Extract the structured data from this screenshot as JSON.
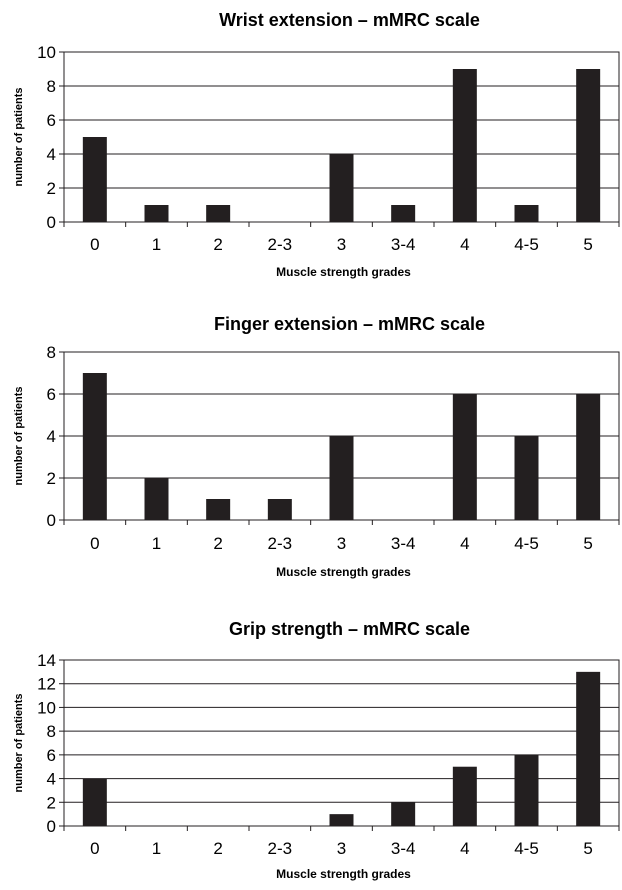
{
  "chart_data": [
    {
      "type": "bar",
      "title": "Wrist extension – mMRC scale",
      "xlabel": "Muscle strength grades",
      "ylabel": "number of patients",
      "categories": [
        "0",
        "1",
        "2",
        "2-3",
        "3",
        "3-4",
        "4",
        "4-5",
        "5"
      ],
      "values": [
        5,
        1,
        1,
        0,
        4,
        1,
        9,
        1,
        9
      ],
      "ylim": [
        0,
        10
      ],
      "yticks": [
        "0",
        "2",
        "4",
        "6",
        "8",
        "10"
      ],
      "grid": true,
      "bar_color": "#231f20"
    },
    {
      "type": "bar",
      "title": "Finger extension – mMRC scale",
      "xlabel": "Muscle strength grades",
      "ylabel": "number of patients",
      "categories": [
        "0",
        "1",
        "2",
        "2-3",
        "3",
        "3-4",
        "4",
        "4-5",
        "5"
      ],
      "values": [
        7,
        2,
        1,
        1,
        4,
        0,
        6,
        4,
        6
      ],
      "ylim": [
        0,
        8
      ],
      "yticks": [
        "0",
        "2",
        "4",
        "6",
        "8"
      ],
      "grid": true,
      "bar_color": "#231f20"
    },
    {
      "type": "bar",
      "title": "Grip strength – mMRC scale",
      "xlabel": "Muscle strength grades",
      "ylabel": "number of patients",
      "categories": [
        "0",
        "1",
        "2",
        "2-3",
        "3",
        "3-4",
        "4",
        "4-5",
        "5"
      ],
      "values": [
        4,
        0,
        0,
        0,
        1,
        2,
        5,
        6,
        13
      ],
      "ylim": [
        0,
        14
      ],
      "yticks": [
        "0",
        "2",
        "4",
        "6",
        "8",
        "10",
        "12",
        "14"
      ],
      "grid": true,
      "bar_color": "#231f20"
    }
  ]
}
